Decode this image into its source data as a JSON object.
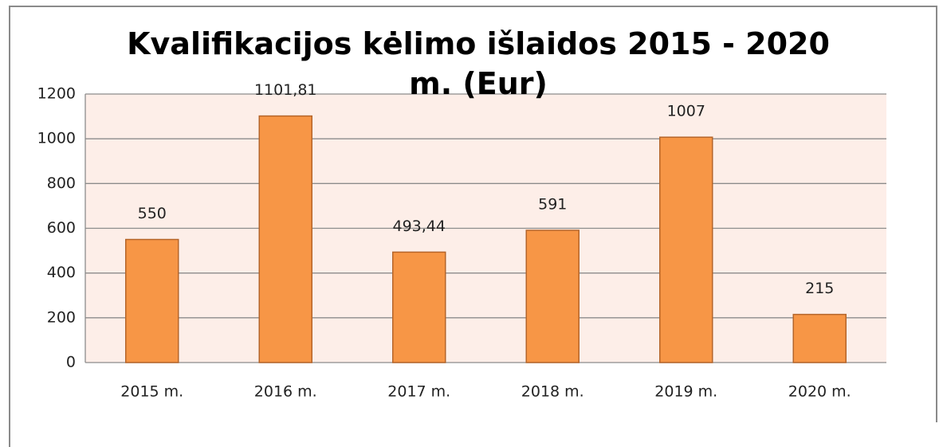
{
  "chart_data": {
    "type": "bar",
    "title": "Kvalifikacijos kėlimo išlaidos 2015 - 2020 m. (Eur)",
    "categories": [
      "2015 m.",
      "2016 m.",
      "2017 m.",
      "2018 m.",
      "2019 m.",
      "2020 m."
    ],
    "values": [
      550,
      1101.81,
      493.44,
      591,
      1007,
      215
    ],
    "value_labels": [
      "550",
      "1101,81",
      "493,44",
      "591",
      "1007",
      "215"
    ],
    "color": "#f79646",
    "ylim": [
      0,
      1200
    ],
    "yticks": [
      0,
      200,
      400,
      600,
      800,
      1000,
      1200
    ],
    "grid": true
  }
}
